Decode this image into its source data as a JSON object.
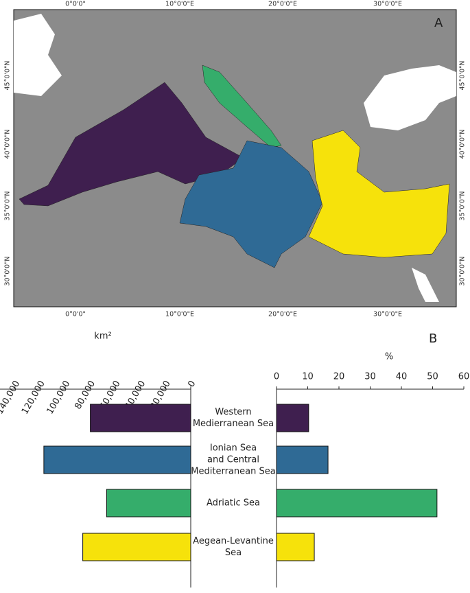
{
  "map": {
    "panel_label": "A",
    "lon_labels": [
      "0°0'0\"",
      "10°0'0\"E",
      "20°0'0\"E",
      "30°0'0\"E"
    ],
    "lat_labels": [
      "45°0'0\"N",
      "40°0'0\"N",
      "35°0'0\"N",
      "30°0'0\"N"
    ]
  },
  "chart_data": {
    "type": "bar",
    "panel_label": "B",
    "categories": [
      [
        "Western",
        "Medierranean Sea"
      ],
      [
        "Ionian Sea",
        "and Central",
        "Mediterranean Sea"
      ],
      [
        "Adriatic Sea"
      ],
      [
        "Aegean-Levantine",
        "Sea"
      ]
    ],
    "colors": [
      "#3f1f4f",
      "#2f6a95",
      "#35ad6b",
      "#f6e20b"
    ],
    "left": {
      "axis_label": "km²",
      "xlim": [
        0,
        150000
      ],
      "xticks": [
        0,
        {
          "value": 20000,
          "label": "20,000"
        },
        {
          "value": 40000,
          "label": "40,000"
        },
        {
          "value": 60000,
          "label": "60,000"
        },
        {
          "value": 80000,
          "label": "80,000"
        },
        {
          "value": 100000,
          "label": "100,000"
        },
        {
          "value": 120000,
          "label": "120,000"
        },
        {
          "value": 140000,
          "label": "140,000"
        }
      ],
      "values": [
        80000,
        117000,
        67000,
        86000
      ]
    },
    "right": {
      "axis_label": "%",
      "xlim": [
        0,
        60
      ],
      "xticks": [
        0,
        10,
        20,
        30,
        40,
        50,
        60
      ],
      "values": [
        10.3,
        16.5,
        51.4,
        12.1
      ]
    }
  }
}
